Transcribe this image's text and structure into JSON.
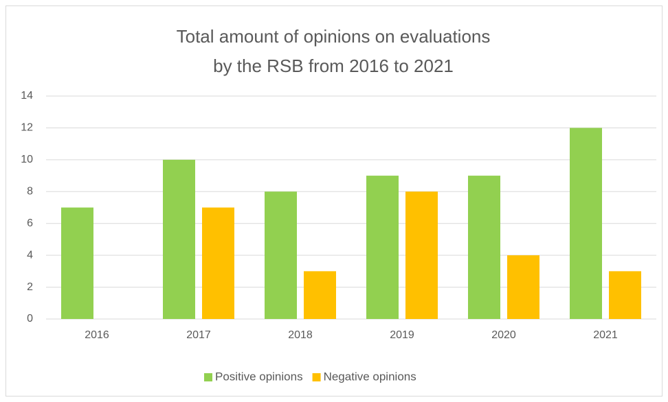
{
  "chart_data": {
    "type": "bar",
    "title": [
      "Total amount of opinions on evaluations",
      "by the RSB from 2016 to 2021"
    ],
    "categories": [
      "2016",
      "2017",
      "2018",
      "2019",
      "2020",
      "2021"
    ],
    "series": [
      {
        "name": "Positive opinions",
        "color": "#92d050",
        "values": [
          7,
          10,
          8,
          9,
          9,
          12
        ]
      },
      {
        "name": "Negative opinions",
        "color": "#ffc000",
        "values": [
          0,
          7,
          3,
          8,
          4,
          3
        ]
      }
    ],
    "ylim": [
      0,
      14
    ],
    "yticks": [
      0,
      2,
      4,
      6,
      8,
      10,
      12,
      14
    ],
    "grid": true,
    "legend": "bottom"
  }
}
